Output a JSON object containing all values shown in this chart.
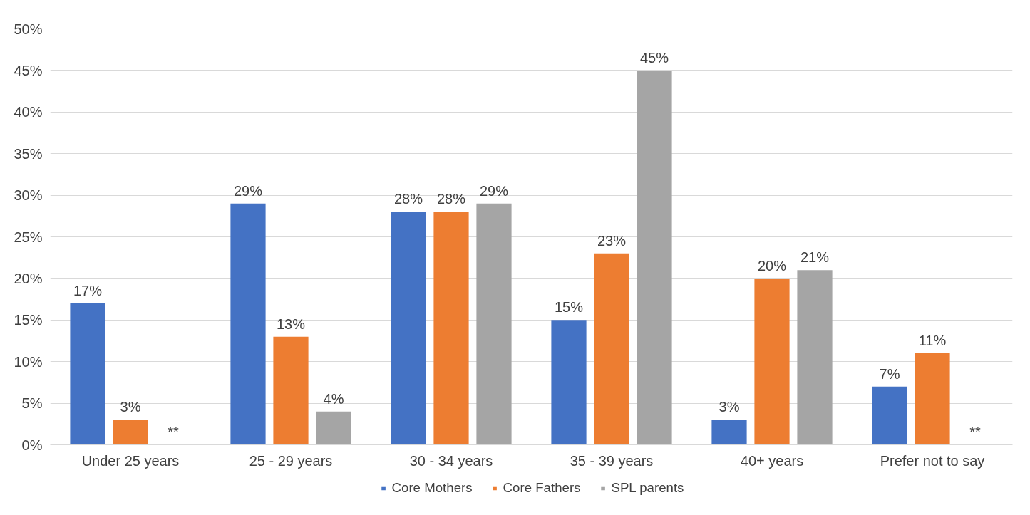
{
  "chart_data": {
    "type": "bar",
    "categories": [
      "Under 25 years",
      "25 - 29 years",
      "30 - 34 years",
      "35 - 39 years",
      "40+ years",
      "Prefer not to say"
    ],
    "series": [
      {
        "name": "Core Mothers",
        "color": "#4472c4",
        "values": [
          17,
          29,
          28,
          15,
          3,
          7
        ],
        "value_labels": [
          "17%",
          "29%",
          "28%",
          "15%",
          "3%",
          "7%"
        ]
      },
      {
        "name": "Core Fathers",
        "color": "#ed7d31",
        "values": [
          3,
          13,
          28,
          23,
          20,
          11
        ],
        "value_labels": [
          "3%",
          "13%",
          "28%",
          "23%",
          "20%",
          "11%"
        ]
      },
      {
        "name": "SPL parents",
        "color": "#a5a5a5",
        "values": [
          null,
          4,
          29,
          45,
          21,
          null
        ],
        "value_labels": [
          "**",
          "4%",
          "29%",
          "45%",
          "21%",
          "**"
        ]
      }
    ],
    "ylim": [
      0,
      50
    ],
    "yticks": [
      {
        "value": 0,
        "label": "0%"
      },
      {
        "value": 5,
        "label": "5%"
      },
      {
        "value": 10,
        "label": "10%"
      },
      {
        "value": 15,
        "label": "15%"
      },
      {
        "value": 20,
        "label": "20%"
      },
      {
        "value": 25,
        "label": "25%"
      },
      {
        "value": 30,
        "label": "30%"
      },
      {
        "value": 35,
        "label": "35%"
      },
      {
        "value": 40,
        "label": "40%"
      },
      {
        "value": 45,
        "label": "45%"
      },
      {
        "value": 50,
        "label": "50%"
      }
    ],
    "grid": "y",
    "legend": "bottom"
  }
}
